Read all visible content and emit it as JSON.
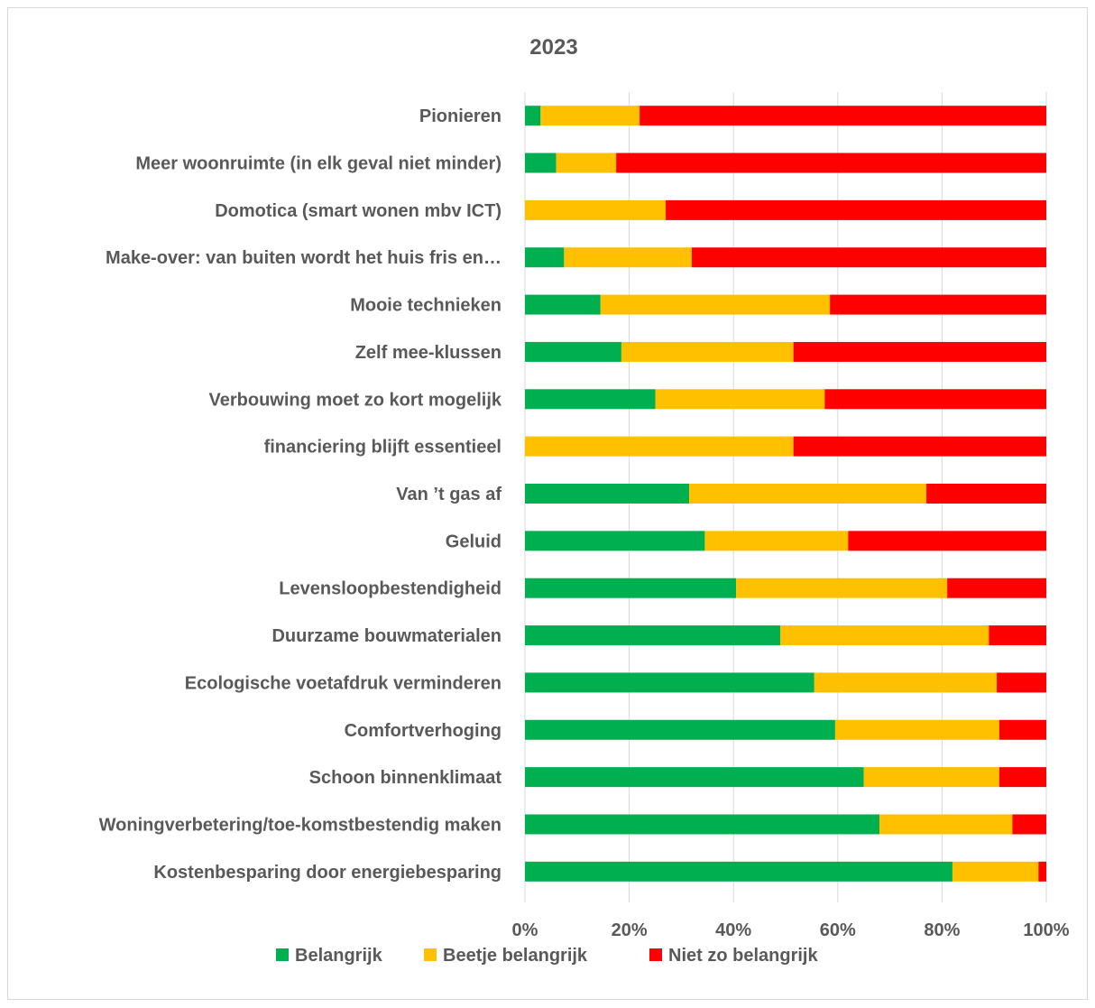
{
  "chart_data": {
    "type": "bar",
    "orientation": "horizontal",
    "stacked": "percent",
    "title": "2023",
    "categories": [
      "Pionieren",
      "Meer woonruimte (in elk geval niet minder)",
      "Domotica (smart wonen mbv ICT)",
      "Make-over: van buiten wordt het huis fris en…",
      "Mooie technieken",
      "Zelf mee-klussen",
      "Verbouwing moet zo kort mogelijk",
      "financiering blijft essentieel",
      "Van ’t gas af",
      "Geluid",
      "Levensloopbestendigheid",
      "Duurzame bouwmaterialen",
      "Ecologische voetafdruk verminderen",
      "Comfortverhoging",
      "Schoon binnenklimaat",
      "Woningverbetering/toe-komstbestendig maken",
      "Kostenbesparing door energiebesparing"
    ],
    "series": [
      {
        "name": "Belangrijk",
        "color": "#00b050",
        "values": [
          3,
          6,
          0,
          7.5,
          14.5,
          18.5,
          25,
          0,
          31.5,
          34.5,
          40.5,
          49,
          55.5,
          59.5,
          65,
          68,
          82
        ]
      },
      {
        "name": "Beetje belangrijk",
        "color": "#ffc000",
        "values": [
          19,
          11.5,
          27,
          24.5,
          44,
          33,
          32.5,
          51.5,
          45.5,
          27.5,
          40.5,
          40,
          35,
          31.5,
          26,
          25.5,
          16.5
        ]
      },
      {
        "name": "Niet zo belangrijk",
        "color": "#ff0000",
        "values": [
          78,
          82.5,
          73,
          68,
          41.5,
          48.5,
          42.5,
          48.5,
          23,
          38,
          19,
          11,
          9.5,
          9,
          9,
          6.5,
          1.5
        ]
      }
    ],
    "x_ticks": [
      "0%",
      "20%",
      "40%",
      "60%",
      "80%",
      "100%"
    ],
    "xlim": [
      0,
      100
    ],
    "grid": "vertical",
    "legend_position": "bottom"
  }
}
